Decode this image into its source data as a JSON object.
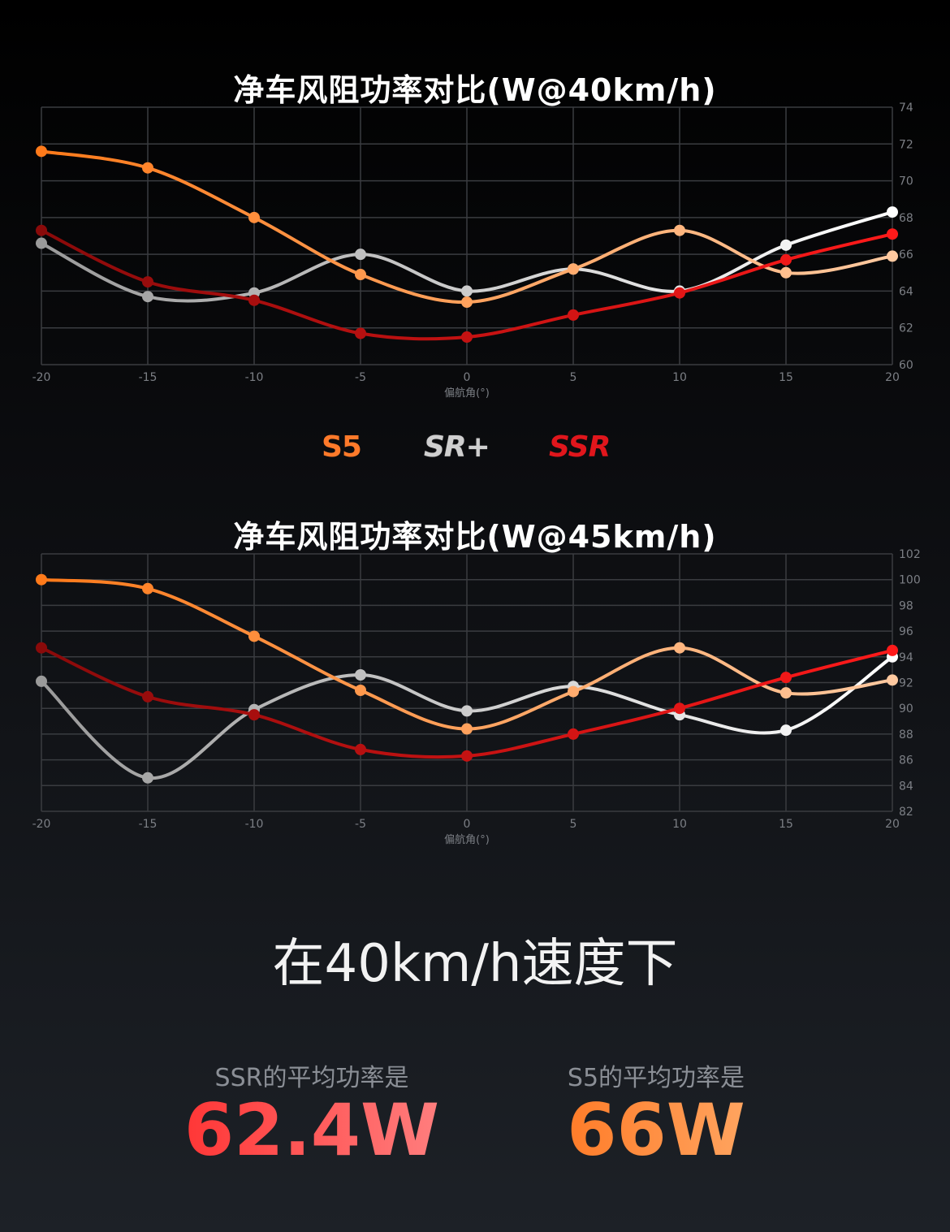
{
  "chart_data": [
    {
      "type": "line",
      "title": "净车风阻功率对比(W@40km/h)",
      "xlabel": "偏航角(°)",
      "ylabel": "",
      "x": [
        -20,
        -15,
        -10,
        -5,
        0,
        5,
        10,
        15,
        20
      ],
      "xlim": [
        -20,
        20
      ],
      "ylim": [
        60,
        74
      ],
      "yticks": [
        60,
        62,
        64,
        66,
        68,
        70,
        72,
        74
      ],
      "grid": true,
      "series": [
        {
          "key": "SR+",
          "color_start": "#9a9a9a",
          "color_end": "#ffffff",
          "values": [
            66.6,
            63.7,
            63.9,
            66.0,
            64.0,
            65.2,
            64.0,
            66.5,
            68.3
          ]
        },
        {
          "key": "S5",
          "color_start": "#ff7a1a",
          "color_end": "#ffc9a0",
          "values": [
            71.6,
            70.7,
            68.0,
            64.9,
            63.4,
            65.2,
            67.3,
            65.0,
            65.9
          ]
        },
        {
          "key": "SSR",
          "color_start": "#8a0a0a",
          "color_end": "#ff1a1a",
          "values": [
            67.3,
            64.5,
            63.5,
            61.7,
            61.5,
            62.7,
            63.9,
            65.7,
            67.1
          ]
        }
      ]
    },
    {
      "type": "line",
      "title": "净车风阻功率对比(W@45km/h)",
      "xlabel": "偏航角(°)",
      "ylabel": "",
      "x": [
        -20,
        -15,
        -10,
        -5,
        0,
        5,
        10,
        15,
        20
      ],
      "xlim": [
        -20,
        20
      ],
      "ylim": [
        82,
        102
      ],
      "yticks": [
        82,
        84,
        86,
        88,
        90,
        92,
        94,
        96,
        98,
        100,
        102
      ],
      "grid": true,
      "series": [
        {
          "key": "SR+",
          "color_start": "#9a9a9a",
          "color_end": "#ffffff",
          "values": [
            92.1,
            84.6,
            89.9,
            92.6,
            89.8,
            91.7,
            89.5,
            88.3,
            94.0
          ]
        },
        {
          "key": "S5",
          "color_start": "#ff7a1a",
          "color_end": "#ffc9a0",
          "values": [
            100.0,
            99.3,
            95.6,
            91.4,
            88.4,
            91.3,
            94.7,
            91.2,
            92.2
          ]
        },
        {
          "key": "SSR",
          "color_start": "#8a0a0a",
          "color_end": "#ff1a1a",
          "values": [
            94.7,
            90.9,
            89.5,
            86.8,
            86.3,
            88.0,
            90.0,
            92.4,
            94.5
          ]
        }
      ]
    }
  ],
  "legend": {
    "s5": "S5",
    "srplus": "SR+",
    "ssr": "SSR"
  },
  "summary": {
    "subtitle": "在40km/h速度下",
    "ssr_label": "SSR的平均功率是",
    "ssr_value": "62.4W",
    "s5_label": "S5的平均功率是",
    "s5_value": "66W"
  }
}
